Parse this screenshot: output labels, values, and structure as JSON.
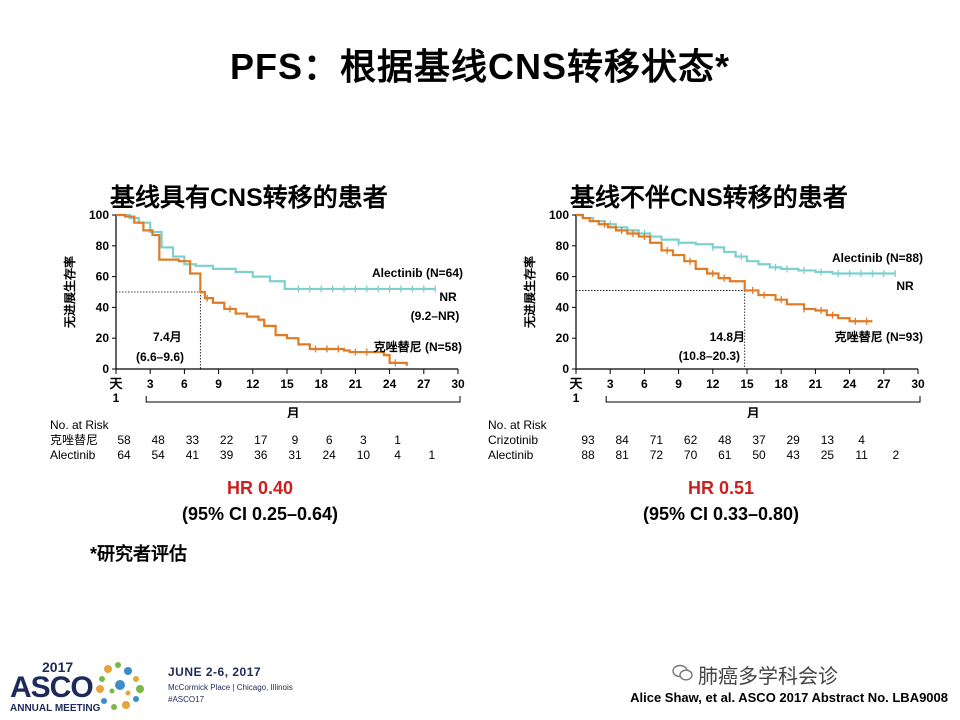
{
  "page": {
    "title": "PFS：根据基线CNS转移状态*",
    "footnote": "*研究者评估",
    "citation": "Alice Shaw, et al.  ASCO 2017 Abstract No. LBA9008",
    "wechat_label": "肺癌多学科会诊",
    "asco": {
      "year": "2017",
      "name": "ASCO",
      "subtitle": "ANNUAL MEETING",
      "date": "JUNE 2-6, 2017",
      "place": "McCormick Place | Chicago, Illinois",
      "tag": "#ASCO17"
    }
  },
  "chart_data": [
    {
      "type": "line",
      "title": "基线具有CNS转移的患者",
      "ylabel": "无进展生存率",
      "xlabel": "月",
      "x_first_label": "天",
      "x_first_sub": "1",
      "xlim": [
        0,
        30
      ],
      "ylim": [
        0,
        100
      ],
      "xticks": [
        3,
        6,
        9,
        12,
        15,
        18,
        21,
        24,
        27,
        30
      ],
      "yticks": [
        0,
        20,
        40,
        60,
        80,
        100
      ],
      "series": [
        {
          "name": "Alectinib (N=64)",
          "color": "#7ed0cf",
          "steps": [
            [
              0,
              100
            ],
            [
              1.2,
              98
            ],
            [
              2.0,
              95
            ],
            [
              3.0,
              89
            ],
            [
              4.0,
              79
            ],
            [
              5.0,
              73
            ],
            [
              6.0,
              68
            ],
            [
              7.0,
              67
            ],
            [
              8.5,
              65
            ],
            [
              10.5,
              63
            ],
            [
              12.0,
              60
            ],
            [
              13.5,
              57
            ],
            [
              14.8,
              52
            ],
            [
              28.0,
              52
            ]
          ],
          "censor": [
            16,
            17,
            18,
            19,
            20,
            21,
            22,
            23,
            24,
            25,
            26,
            27,
            28
          ]
        },
        {
          "name": "克唑替尼 (N=58)",
          "color": "#e07b24",
          "steps": [
            [
              0,
              100
            ],
            [
              0.8,
              99
            ],
            [
              1.6,
              95
            ],
            [
              2.4,
              90
            ],
            [
              3.2,
              87
            ],
            [
              3.8,
              71
            ],
            [
              5.5,
              70
            ],
            [
              6.5,
              62
            ],
            [
              7.4,
              50
            ],
            [
              7.8,
              46
            ],
            [
              8.5,
              43
            ],
            [
              9.5,
              39
            ],
            [
              10.5,
              36
            ],
            [
              11.5,
              34
            ],
            [
              12.5,
              32
            ],
            [
              13.0,
              28
            ],
            [
              14.0,
              22
            ],
            [
              15.0,
              20
            ],
            [
              16.0,
              16
            ],
            [
              17.0,
              13
            ],
            [
              20.0,
              12
            ],
            [
              20.5,
              11
            ],
            [
              23.5,
              9
            ],
            [
              24.0,
              4
            ],
            [
              25.5,
              2
            ]
          ],
          "censor": [
            8,
            10,
            17.5,
            18.5,
            19.5,
            21,
            22,
            24.5
          ]
        }
      ],
      "median_reference": {
        "x": 7.4,
        "y": 50
      },
      "annotations": {
        "alectinib_label": "Alectinib (N=64)",
        "nr": "NR",
        "nr_ci": "(9.2–NR)",
        "median_label": "7.4月",
        "median_ci": "(6.6–9.6)",
        "crizotinib_label": "克唑替尼 (N=58)"
      },
      "risk_table": {
        "header": "No. at Risk",
        "rows": [
          {
            "label": "克唑替尼",
            "values": [
              "58",
              "48",
              "33",
              "22",
              "17",
              "9",
              "6",
              "3",
              "1"
            ]
          },
          {
            "label": "Alectinib",
            "values": [
              "64",
              "54",
              "41",
              "39",
              "36",
              "31",
              "24",
              "10",
              "4",
              "1"
            ]
          }
        ]
      },
      "hr": "HR 0.40",
      "ci": "(95% CI 0.25–0.64)"
    },
    {
      "type": "line",
      "title": "基线不伴CNS转移的患者",
      "ylabel": "无进展生存率",
      "xlabel": "月",
      "x_first_label": "天",
      "x_first_sub": "1",
      "xlim": [
        0,
        30
      ],
      "ylim": [
        0,
        100
      ],
      "xticks": [
        3,
        6,
        9,
        12,
        15,
        18,
        21,
        24,
        27,
        30
      ],
      "yticks": [
        0,
        20,
        40,
        60,
        80,
        100
      ],
      "series": [
        {
          "name": "Alectinib (N=88)",
          "color": "#7ed0cf",
          "steps": [
            [
              0,
              100
            ],
            [
              0.6,
              98
            ],
            [
              1.5,
              96
            ],
            [
              2.5,
              94
            ],
            [
              3.5,
              92
            ],
            [
              4.5,
              90
            ],
            [
              5.5,
              88
            ],
            [
              6.5,
              86
            ],
            [
              7.5,
              84
            ],
            [
              9.0,
              82
            ],
            [
              10.5,
              81
            ],
            [
              12.0,
              79
            ],
            [
              13.0,
              76
            ],
            [
              14.0,
              73
            ],
            [
              15.0,
              70
            ],
            [
              16.0,
              68
            ],
            [
              17.0,
              66
            ],
            [
              18.0,
              65
            ],
            [
              19.5,
              64
            ],
            [
              21.0,
              63
            ],
            [
              22.5,
              62
            ],
            [
              28.0,
              62
            ]
          ],
          "censor": [
            3,
            6,
            9,
            12,
            14.5,
            17.5,
            18.5,
            20,
            21.5,
            23,
            24,
            25,
            26,
            27,
            28
          ]
        },
        {
          "name": "克唑替尼 (N=93)",
          "color": "#e07b24",
          "steps": [
            [
              0,
              100
            ],
            [
              0.6,
              98
            ],
            [
              1.2,
              96
            ],
            [
              2.0,
              94
            ],
            [
              2.8,
              92
            ],
            [
              3.5,
              90
            ],
            [
              4.5,
              88
            ],
            [
              5.5,
              86
            ],
            [
              6.5,
              82
            ],
            [
              7.5,
              77
            ],
            [
              8.5,
              74
            ],
            [
              9.5,
              70
            ],
            [
              10.5,
              65
            ],
            [
              11.5,
              62
            ],
            [
              12.5,
              59
            ],
            [
              13.5,
              57
            ],
            [
              14.8,
              51
            ],
            [
              16.0,
              48
            ],
            [
              17.5,
              45
            ],
            [
              18.5,
              42
            ],
            [
              20.0,
              39
            ],
            [
              21.0,
              38
            ],
            [
              22.0,
              35
            ],
            [
              23.0,
              33
            ],
            [
              24.0,
              31
            ],
            [
              26.0,
              31
            ]
          ],
          "censor": [
            2.5,
            4,
            5,
            6,
            8,
            10,
            12,
            13,
            15.5,
            16.5,
            18,
            20,
            21.5,
            22.5,
            24.5,
            25.5
          ]
        }
      ],
      "median_reference": {
        "x": 14.8,
        "y": 51
      },
      "annotations": {
        "alectinib_label": "Alectinib (N=88)",
        "nr": "NR",
        "nr_ci": "",
        "median_label": "14.8月",
        "median_ci": "(10.8–20.3)",
        "crizotinib_label": "克唑替尼 (N=93)"
      },
      "risk_table": {
        "header": "No. at Risk",
        "rows": [
          {
            "label": "Crizotinib",
            "values": [
              "93",
              "84",
              "71",
              "62",
              "48",
              "37",
              "29",
              "13",
              "4"
            ]
          },
          {
            "label": "Alectinib",
            "values": [
              "88",
              "81",
              "72",
              "70",
              "61",
              "50",
              "43",
              "25",
              "11",
              "2"
            ]
          }
        ]
      },
      "hr": "HR 0.51",
      "ci": "(95% CI 0.33–0.80)"
    }
  ]
}
